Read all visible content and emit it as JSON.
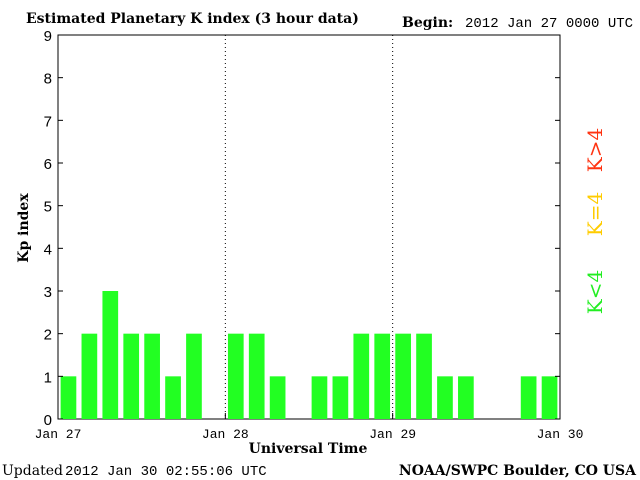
{
  "header": {
    "title": "Estimated Planetary K index (3 hour data)",
    "begin_label": "Begin:",
    "begin_value": "2012 Jan 27 0000 UTC"
  },
  "footer": {
    "updated_label": "Updated",
    "updated_value": "2012 Jan 30 02:55:06 UTC",
    "credit": "NOAA/SWPC Boulder, CO USA"
  },
  "legend": {
    "items": [
      {
        "label": "K<4",
        "color": "#22ee22"
      },
      {
        "label": "K=4",
        "color": "#ffcc00"
      },
      {
        "label": "K>4",
        "color": "#ff3311"
      }
    ]
  },
  "chart_data": {
    "type": "bar",
    "title": "Estimated Planetary K index (3 hour data)",
    "xlabel": "Universal Time",
    "ylabel": "Kp index",
    "ylim": [
      0,
      9
    ],
    "yticks": [
      0,
      1,
      2,
      3,
      4,
      5,
      6,
      7,
      8,
      9
    ],
    "xlim_hours": [
      0,
      72
    ],
    "xticks": [
      {
        "hour": 0,
        "label": "Jan 27"
      },
      {
        "hour": 24,
        "label": "Jan 28"
      },
      {
        "hour": 48,
        "label": "Jan 29"
      },
      {
        "hour": 72,
        "label": "Jan 30"
      }
    ],
    "interval_hours": 3,
    "values": [
      1,
      2,
      3,
      2,
      2,
      1,
      2,
      null,
      2,
      2,
      1,
      null,
      1,
      1,
      2,
      2,
      2,
      2,
      1,
      1,
      null,
      null,
      1,
      1
    ],
    "bar_color": "#22ff22",
    "grid": "dotted vertical at day boundaries"
  }
}
